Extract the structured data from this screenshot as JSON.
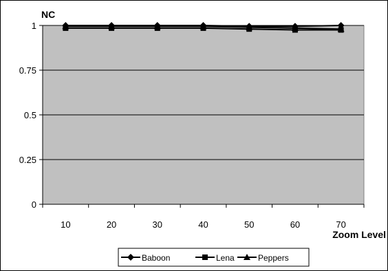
{
  "chart_data": {
    "type": "line",
    "title": "",
    "xlabel": "Zoom Level",
    "ylabel": "NC",
    "categories": [
      "10",
      "20",
      "30",
      "40",
      "50",
      "60",
      "70"
    ],
    "ylim": [
      0,
      1
    ],
    "yticks": [
      "0",
      "0.25",
      "0.5",
      "0.75",
      "1"
    ],
    "grid": true,
    "legend_position": "bottom",
    "plot_background": "#c0c0c0",
    "series": [
      {
        "name": "Baboon",
        "marker": "diamond",
        "values": [
          1.0,
          1.0,
          1.0,
          1.0,
          0.995,
          0.995,
          1.0
        ]
      },
      {
        "name": "Lena",
        "marker": "square",
        "values": [
          0.985,
          0.985,
          0.985,
          0.985,
          0.98,
          0.975,
          0.975
        ]
      },
      {
        "name": "Peppers",
        "marker": "triangle",
        "values": [
          0.995,
          0.995,
          0.995,
          0.995,
          0.99,
          0.985,
          0.98
        ]
      }
    ]
  }
}
